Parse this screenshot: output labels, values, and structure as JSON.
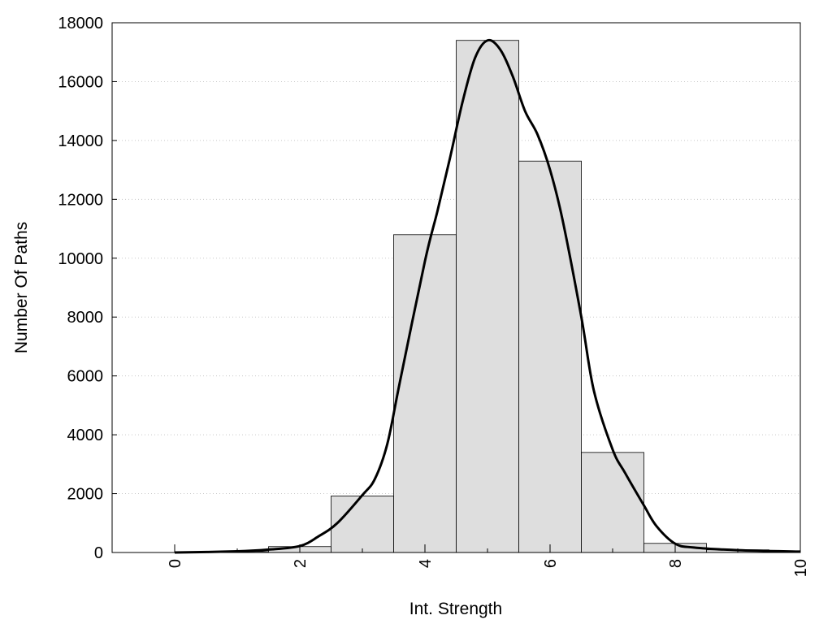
{
  "chart_data": {
    "type": "bar",
    "title": "",
    "xlabel": "Int. Strength",
    "ylabel": "Number Of Paths",
    "xlim": [
      -1,
      10
    ],
    "ylim": [
      0,
      18000
    ],
    "x_ticks": [
      0,
      2,
      4,
      6,
      8,
      10
    ],
    "y_ticks": [
      0,
      2000,
      4000,
      6000,
      8000,
      10000,
      12000,
      14000,
      16000,
      18000
    ],
    "x_tick_labels": [
      "0",
      "2",
      "4",
      "6",
      "8",
      "10"
    ],
    "y_tick_labels": [
      "0",
      "2000",
      "4000",
      "6000",
      "8000",
      "10000",
      "12000",
      "14000",
      "16000",
      "18000"
    ],
    "grid": "horizontal dotted",
    "bar_color": "#dedede",
    "bar_width": 1,
    "series": [
      {
        "type": "bar",
        "x": [
          0,
          1,
          2,
          3,
          4,
          5,
          6,
          7,
          8,
          9
        ],
        "values": [
          0,
          30,
          200,
          1920,
          10800,
          17400,
          13300,
          3400,
          310,
          90
        ]
      },
      {
        "type": "line",
        "color": "#000000",
        "x": [
          0,
          1,
          1.5,
          2,
          2.3,
          2.6,
          3,
          3.2,
          3.4,
          3.6,
          4,
          4.2,
          4.4,
          4.6,
          4.8,
          5,
          5.2,
          5.4,
          5.6,
          5.8,
          6,
          6.2,
          6.5,
          6.7,
          7,
          7.2,
          7.5,
          7.7,
          8,
          8.3,
          9,
          10
        ],
        "values": [
          0,
          40,
          100,
          220,
          550,
          1000,
          1950,
          2500,
          3700,
          5800,
          9900,
          11600,
          13400,
          15300,
          16800,
          17400,
          17100,
          16200,
          15000,
          14200,
          13000,
          11300,
          8000,
          5500,
          3500,
          2700,
          1600,
          900,
          300,
          170,
          80,
          30
        ]
      }
    ]
  }
}
